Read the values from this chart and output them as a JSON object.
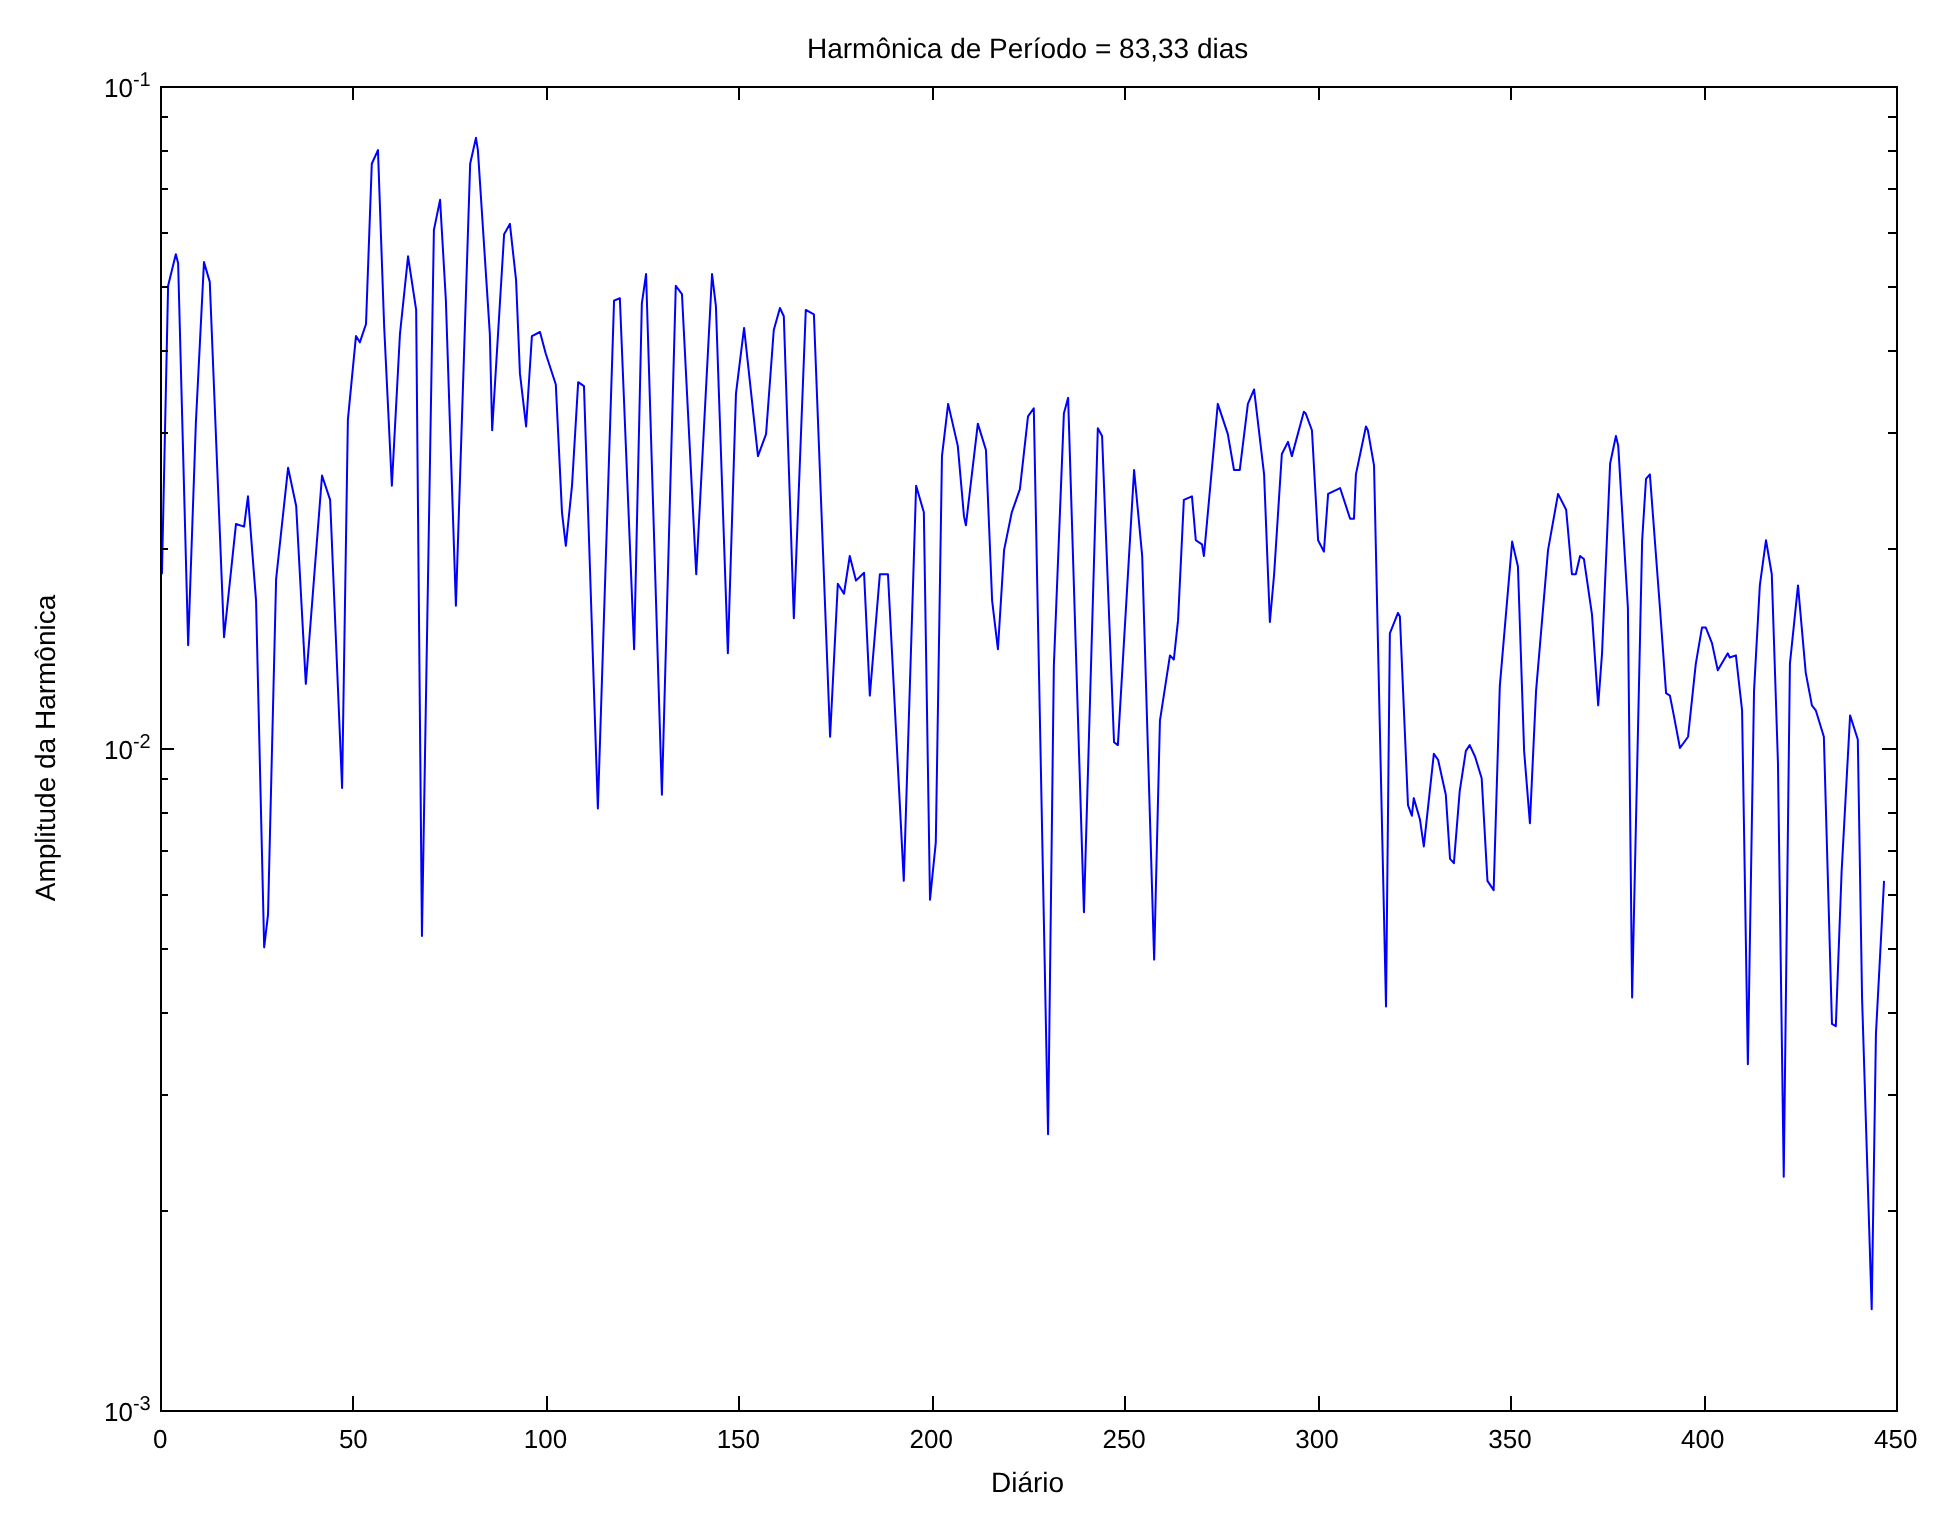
{
  "chart_data": {
    "type": "line",
    "title": "Harmônica de Período = 83,33 dias",
    "xlabel": "Diário",
    "ylabel": "Amplitude da Harmônica",
    "log": "y",
    "grid": false,
    "legend": false,
    "marker": "none",
    "line_style": "solid",
    "xlim": [
      0,
      450
    ],
    "xticks": [
      0,
      50,
      100,
      150,
      200,
      250,
      300,
      350,
      400,
      450
    ],
    "ylim": [
      0.001,
      0.1
    ],
    "yticks": [
      {
        "value": 0.001,
        "label": "10$^{-3}$"
      },
      {
        "value": 0.002,
        "label": null
      },
      {
        "value": 0.003,
        "label": null
      },
      {
        "value": 0.004,
        "label": null
      },
      {
        "value": 0.005,
        "label": null
      },
      {
        "value": 0.006,
        "label": null
      },
      {
        "value": 0.007,
        "label": null
      },
      {
        "value": 0.008,
        "label": null
      },
      {
        "value": 0.009,
        "label": null
      },
      {
        "value": 0.01,
        "label": "10$^{-2}$"
      },
      {
        "value": 0.02,
        "label": null
      },
      {
        "value": 0.03,
        "label": null
      },
      {
        "value": 0.04,
        "label": null
      },
      {
        "value": 0.05,
        "label": null
      },
      {
        "value": 0.06,
        "label": null
      },
      {
        "value": 0.07,
        "label": null
      },
      {
        "value": 0.08,
        "label": null
      },
      {
        "value": 0.09,
        "label": null
      },
      {
        "value": 0.1,
        "label": "10$^{-1}$"
      }
    ],
    "series": [
      {
        "color": "#0000ff",
        "x": [
          0.5,
          2.1,
          4.1,
          4.7,
          7.3,
          9.3,
          11.4,
          12.9,
          16.6,
          19.7,
          21.8,
          22.8,
          24.9,
          27.0,
          28.0,
          30.1,
          33.2,
          35.3,
          37.8,
          42.0,
          44.1,
          47.2,
          48.7,
          50.8,
          51.8,
          53.4,
          54.9,
          56.5,
          58.1,
          60.1,
          62.2,
          64.3,
          66.4,
          67.9,
          71.0,
          72.6,
          74.1,
          76.7,
          80.4,
          81.9,
          82.4,
          85.5,
          86.1,
          89.2,
          90.7,
          92.3,
          93.3,
          94.9,
          96.4,
          98.5,
          100.0,
          102.6,
          104.2,
          105.2,
          106.8,
          108.4,
          109.9,
          113.5,
          117.7,
          119.2,
          122.9,
          124.9,
          126.0,
          130.1,
          133.7,
          135.3,
          139.0,
          143.1,
          144.1,
          147.2,
          149.3,
          151.4,
          155.0,
          157.1,
          159.1,
          160.7,
          161.7,
          164.3,
          167.4,
          169.5,
          173.7,
          175.7,
          177.3,
          178.8,
          180.4,
          182.5,
          184.0,
          186.6,
          188.7,
          192.8,
          196.0,
          198.0,
          199.6,
          201.1,
          202.7,
          204.3,
          206.8,
          208.4,
          208.9,
          212.0,
          214.1,
          215.7,
          217.2,
          218.8,
          220.8,
          222.9,
          225.0,
          226.5,
          230.2,
          231.7,
          234.3,
          235.4,
          239.5,
          243.1,
          244.2,
          247.3,
          248.3,
          252.5,
          254.6,
          257.7,
          259.2,
          261.8,
          262.8,
          263.9,
          265.4,
          267.5,
          268.5,
          270.1,
          270.6,
          274.2,
          276.8,
          278.4,
          279.9,
          282.0,
          283.6,
          286.2,
          287.7,
          288.8,
          290.8,
          292.4,
          293.4,
          296.5,
          297.0,
          298.6,
          300.2,
          301.7,
          302.8,
          305.9,
          308.5,
          309.5,
          310.0,
          312.6,
          313.1,
          314.7,
          317.8,
          318.8,
          320.9,
          321.4,
          323.5,
          324.5,
          325.0,
          326.6,
          327.6,
          330.2,
          331.3,
          333.3,
          334.4,
          335.4,
          336.9,
          338.5,
          339.5,
          340.9,
          342.6,
          344.1,
          345.7,
          347.3,
          350.5,
          352.0,
          353.6,
          355.1,
          356.7,
          359.8,
          362.4,
          364.5,
          366.0,
          367.0,
          368.1,
          369.1,
          371.2,
          372.8,
          373.8,
          375.9,
          377.4,
          378.0,
          380.5,
          381.6,
          384.2,
          385.2,
          386.2,
          388.8,
          390.4,
          391.4,
          392.4,
          394.0,
          396.1,
          398.1,
          399.7,
          400.7,
          402.3,
          403.8,
          406.4,
          406.9,
          408.5,
          410.1,
          411.6,
          413.2,
          414.7,
          416.3,
          417.8,
          419.4,
          420.9,
          422.5,
          424.6,
          426.6,
          428.2,
          429.2,
          431.3,
          433.4,
          434.4,
          435.9,
          438.1,
          440.1,
          441.2,
          443.7,
          444.8,
          446.9
        ],
        "values": [
          0.0183,
          0.0499,
          0.0557,
          0.054,
          0.0143,
          0.031,
          0.0542,
          0.0506,
          0.0147,
          0.0218,
          0.0216,
          0.024,
          0.0167,
          0.005,
          0.0056,
          0.018,
          0.0265,
          0.0232,
          0.0125,
          0.0258,
          0.0237,
          0.0087,
          0.0313,
          0.0419,
          0.041,
          0.0437,
          0.0763,
          0.08,
          0.0434,
          0.0249,
          0.0422,
          0.0553,
          0.0459,
          0.0052,
          0.0606,
          0.0673,
          0.0475,
          0.0164,
          0.0763,
          0.0835,
          0.08,
          0.0422,
          0.0302,
          0.0597,
          0.0619,
          0.0509,
          0.0368,
          0.0306,
          0.0419,
          0.0425,
          0.0394,
          0.0354,
          0.0227,
          0.0202,
          0.0249,
          0.0357,
          0.0352,
          0.0081,
          0.0474,
          0.0478,
          0.0141,
          0.0469,
          0.052,
          0.0085,
          0.0499,
          0.0485,
          0.0183,
          0.052,
          0.0465,
          0.0139,
          0.0343,
          0.0431,
          0.0276,
          0.0298,
          0.0428,
          0.0462,
          0.0449,
          0.0157,
          0.0459,
          0.0452,
          0.0104,
          0.0177,
          0.0171,
          0.0195,
          0.0179,
          0.0184,
          0.012,
          0.0183,
          0.0183,
          0.0063,
          0.0249,
          0.0227,
          0.0059,
          0.0072,
          0.0276,
          0.0331,
          0.0286,
          0.0224,
          0.0217,
          0.0309,
          0.0282,
          0.0167,
          0.0141,
          0.0199,
          0.0227,
          0.0246,
          0.0317,
          0.0326,
          0.00261,
          0.0133,
          0.032,
          0.0338,
          0.00565,
          0.0304,
          0.0296,
          0.0102,
          0.0101,
          0.0263,
          0.0195,
          0.00479,
          0.011,
          0.0138,
          0.0136,
          0.0156,
          0.0237,
          0.024,
          0.0206,
          0.0203,
          0.0195,
          0.0331,
          0.0298,
          0.0263,
          0.0263,
          0.0331,
          0.0348,
          0.0259,
          0.0155,
          0.0183,
          0.0278,
          0.029,
          0.0276,
          0.0322,
          0.032,
          0.0302,
          0.0206,
          0.0198,
          0.0242,
          0.0247,
          0.0222,
          0.0222,
          0.0259,
          0.0306,
          0.0302,
          0.0267,
          0.00407,
          0.0149,
          0.016,
          0.0158,
          0.0082,
          0.0079,
          0.0084,
          0.0078,
          0.0071,
          0.0098,
          0.0096,
          0.0085,
          0.0068,
          0.0067,
          0.0086,
          0.0099,
          0.0101,
          0.0097,
          0.009,
          0.0063,
          0.0061,
          0.0124,
          0.0205,
          0.0188,
          0.0099,
          0.0077,
          0.0122,
          0.0199,
          0.0242,
          0.0229,
          0.0183,
          0.0183,
          0.0195,
          0.0193,
          0.0159,
          0.0116,
          0.0139,
          0.0269,
          0.0296,
          0.0286,
          0.0163,
          0.0042,
          0.0206,
          0.0255,
          0.0259,
          0.0163,
          0.0121,
          0.012,
          0.0112,
          0.01,
          0.0104,
          0.0134,
          0.0152,
          0.0152,
          0.0144,
          0.0131,
          0.0139,
          0.0137,
          0.0138,
          0.0114,
          0.00333,
          0.0122,
          0.0176,
          0.0206,
          0.0183,
          0.0095,
          0.00225,
          0.0134,
          0.0176,
          0.013,
          0.0116,
          0.0114,
          0.0104,
          0.00383,
          0.0038,
          0.0065,
          0.0112,
          0.0103,
          0.0042,
          0.00142,
          0.0037,
          0.0063
        ]
      }
    ]
  }
}
